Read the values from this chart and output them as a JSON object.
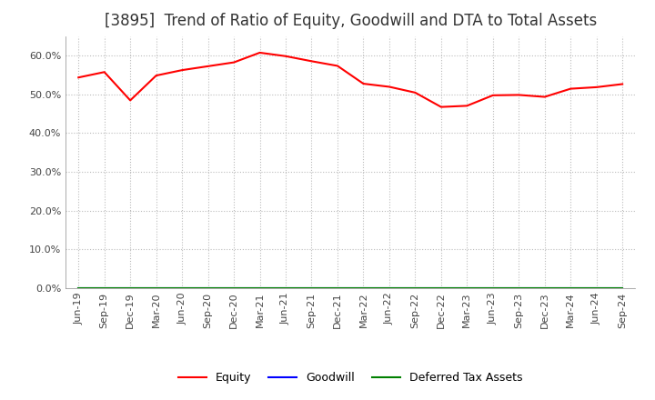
{
  "title": "[3895]  Trend of Ratio of Equity, Goodwill and DTA to Total Assets",
  "title_fontsize": 12,
  "x_labels": [
    "Jun-19",
    "Sep-19",
    "Dec-19",
    "Mar-20",
    "Jun-20",
    "Sep-20",
    "Dec-20",
    "Mar-21",
    "Jun-21",
    "Sep-21",
    "Dec-21",
    "Mar-22",
    "Jun-22",
    "Sep-22",
    "Dec-22",
    "Mar-23",
    "Jun-23",
    "Sep-23",
    "Dec-23",
    "Mar-24",
    "Jun-24",
    "Sep-24"
  ],
  "equity": [
    0.543,
    0.557,
    0.484,
    0.548,
    0.562,
    0.572,
    0.582,
    0.607,
    0.598,
    0.585,
    0.573,
    0.527,
    0.519,
    0.504,
    0.467,
    0.47,
    0.497,
    0.498,
    0.493,
    0.514,
    0.518,
    0.526
  ],
  "goodwill": [
    0.0,
    0.0,
    0.0,
    0.0,
    0.0,
    0.0,
    0.0,
    0.0,
    0.0,
    0.0,
    0.0,
    0.0,
    0.0,
    0.0,
    0.0,
    0.0,
    0.0,
    0.0,
    0.0,
    0.0,
    0.0,
    0.0
  ],
  "dta": [
    0.0,
    0.0,
    0.0,
    0.0,
    0.0,
    0.0,
    0.0,
    0.0,
    0.0,
    0.0,
    0.0,
    0.0,
    0.0,
    0.0,
    0.0,
    0.0,
    0.0,
    0.0,
    0.0,
    0.0,
    0.0,
    0.0
  ],
  "equity_color": "#ff0000",
  "goodwill_color": "#0000ff",
  "dta_color": "#008000",
  "ylim": [
    0.0,
    0.65
  ],
  "yticks": [
    0.0,
    0.1,
    0.2,
    0.3,
    0.4,
    0.5,
    0.6
  ],
  "grid_color": "#aaaaaa",
  "bg_color": "#ffffff",
  "plot_bg_color": "#ffffff"
}
